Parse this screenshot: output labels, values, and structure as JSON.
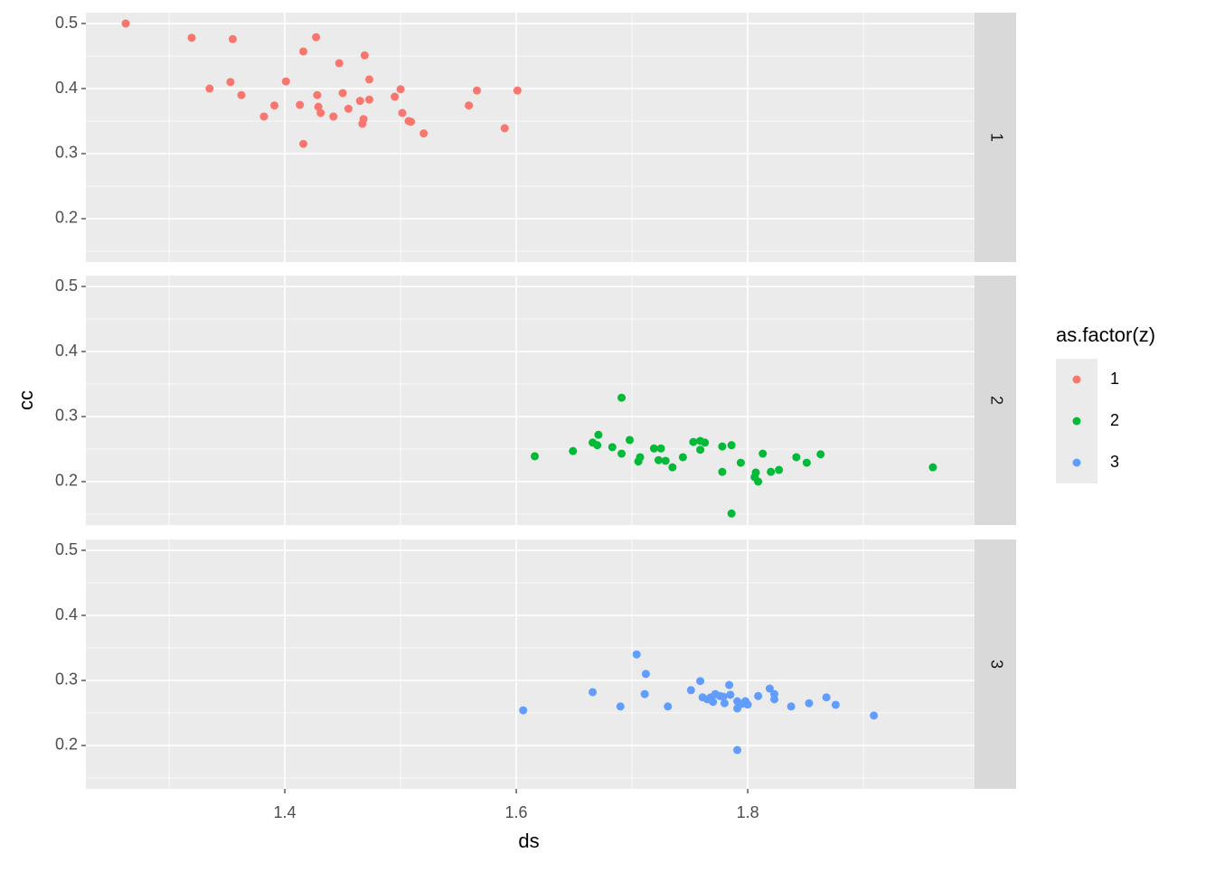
{
  "chart_data": {
    "type": "scatter",
    "xlabel": "ds",
    "ylabel": "cc",
    "legend_title": "as.factor(z)",
    "legend": "right",
    "grid": true,
    "xlim": [
      1.2281,
      1.996
    ],
    "xticks": [
      1.4,
      1.6,
      1.8
    ],
    "minor_xticks": [
      1.3,
      1.5,
      1.7,
      1.9
    ],
    "ylim": [
      0.1333,
      0.5167
    ],
    "yticks": [
      0.2,
      0.3,
      0.4,
      0.5
    ],
    "minor_yticks": [
      0.15,
      0.25,
      0.35,
      0.45
    ],
    "series": [
      {
        "name": "1",
        "color": "#F8766D",
        "x": [
          1.2625,
          1.3195,
          1.355,
          1.335,
          1.353,
          1.3625,
          1.382,
          1.391,
          1.401,
          1.416,
          1.427,
          1.413,
          1.416,
          1.428,
          1.429,
          1.431,
          1.442,
          1.447,
          1.45,
          1.455,
          1.465,
          1.469,
          1.468,
          1.467,
          1.473,
          1.473,
          1.495,
          1.5,
          1.5015,
          1.507,
          1.509,
          1.52,
          1.559,
          1.566,
          1.59,
          1.601
        ],
        "values": [
          0.5,
          0.478,
          0.476,
          0.4,
          0.41,
          0.39,
          0.357,
          0.374,
          0.411,
          0.457,
          0.479,
          0.375,
          0.315,
          0.39,
          0.372,
          0.3625,
          0.357,
          0.439,
          0.393,
          0.369,
          0.381,
          0.451,
          0.353,
          0.346,
          0.414,
          0.383,
          0.3875,
          0.399,
          0.3625,
          0.35,
          0.349,
          0.331,
          0.374,
          0.397,
          0.339,
          0.397
        ]
      },
      {
        "name": "2",
        "color": "#00BA38",
        "x": [
          1.616,
          1.649,
          1.666,
          1.67,
          1.671,
          1.683,
          1.691,
          1.691,
          1.698,
          1.7055,
          1.707,
          1.719,
          1.723,
          1.725,
          1.729,
          1.735,
          1.744,
          1.753,
          1.759,
          1.759,
          1.763,
          1.778,
          1.778,
          1.786,
          1.786,
          1.794,
          1.806,
          1.807,
          1.809,
          1.813,
          1.82,
          1.827,
          1.842,
          1.851,
          1.863,
          1.96
        ],
        "values": [
          0.239,
          0.247,
          0.26,
          0.256,
          0.272,
          0.253,
          0.243,
          0.329,
          0.264,
          0.231,
          0.2375,
          0.251,
          0.233,
          0.251,
          0.232,
          0.222,
          0.2375,
          0.261,
          0.2625,
          0.249,
          0.26,
          0.254,
          0.215,
          0.256,
          0.151,
          0.229,
          0.207,
          0.214,
          0.2,
          0.243,
          0.215,
          0.218,
          0.2375,
          0.229,
          0.242,
          0.222
        ]
      },
      {
        "name": "3",
        "color": "#619CFF",
        "x": [
          1.606,
          1.666,
          1.69,
          1.704,
          1.711,
          1.712,
          1.731,
          1.751,
          1.759,
          1.761,
          1.765,
          1.768,
          1.77,
          1.772,
          1.776,
          1.779,
          1.78,
          1.784,
          1.785,
          1.791,
          1.791,
          1.791,
          1.795,
          1.798,
          1.8,
          1.809,
          1.819,
          1.823,
          1.823,
          1.8375,
          1.853,
          1.868,
          1.876,
          1.909
        ],
        "values": [
          0.254,
          0.282,
          0.26,
          0.34,
          0.279,
          0.31,
          0.26,
          0.285,
          0.299,
          0.274,
          0.271,
          0.274,
          0.267,
          0.279,
          0.276,
          0.275,
          0.265,
          0.293,
          0.278,
          0.268,
          0.257,
          0.193,
          0.264,
          0.268,
          0.263,
          0.276,
          0.2875,
          0.279,
          0.271,
          0.26,
          0.265,
          0.274,
          0.2625,
          0.246
        ]
      }
    ]
  }
}
